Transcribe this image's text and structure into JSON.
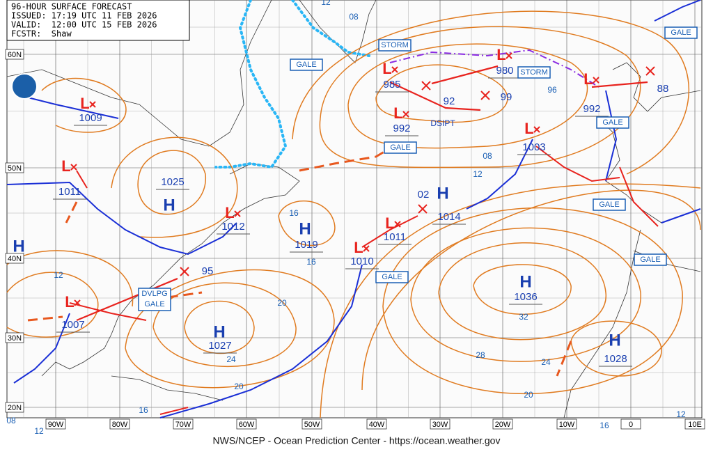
{
  "header": {
    "title": "96-HOUR SURFACE FORECAST",
    "issued": "ISSUED: 17:19 UTC 11 FEB 2026",
    "valid": "VALID:  12:00 UTC 15 FEB 2026",
    "forecaster": "FCSTR:  Shaw"
  },
  "latitude_labels": [
    "60N",
    "50N",
    "40N",
    "30N",
    "20N"
  ],
  "longitude_labels": [
    "90W",
    "80W",
    "70W",
    "60W",
    "50W",
    "40W",
    "30W",
    "20W",
    "10W",
    "0",
    "10E"
  ],
  "highs": [
    {
      "symbol": "H",
      "pressure": "1025"
    },
    {
      "symbol": "H",
      "pressure": "1019"
    },
    {
      "symbol": "H",
      "pressure": "1027"
    },
    {
      "symbol": "H",
      "pressure": "1014"
    },
    {
      "symbol": "H",
      "pressure": "1036"
    },
    {
      "symbol": "H",
      "pressure": "1028"
    },
    {
      "symbol": "H"
    }
  ],
  "lows": [
    {
      "symbol": "L",
      "pressure": "1009"
    },
    {
      "symbol": "L",
      "pressure": "1011"
    },
    {
      "symbol": "L",
      "pressure": "1012"
    },
    {
      "symbol": "L",
      "pressure": "1010"
    },
    {
      "symbol": "L",
      "pressure": "1011"
    },
    {
      "symbol": "L",
      "pressure": "1007"
    },
    {
      "symbol": "L",
      "pressure": "985"
    },
    {
      "symbol": "L",
      "pressure": "992"
    },
    {
      "symbol": "L",
      "pressure": "980"
    },
    {
      "symbol": "L",
      "pressure": "1003"
    },
    {
      "symbol": "L",
      "pressure": "992"
    }
  ],
  "forecast_positions": [
    "92",
    "99",
    "88",
    "95",
    "02"
  ],
  "isobar_labels": [
    "12",
    "08",
    "16",
    "16",
    "20",
    "24",
    "20",
    "16",
    "12",
    "08",
    "12",
    "96",
    "08",
    "12",
    "32",
    "28",
    "24",
    "20",
    "16",
    "12"
  ],
  "warnings": [
    [
      "GALE"
    ],
    [
      "STORM"
    ],
    [
      "STORM"
    ],
    [
      "GALE"
    ],
    [
      "GALE"
    ],
    [
      "GALE"
    ],
    [
      "GALE"
    ],
    [
      "GALE"
    ],
    [
      "GALE"
    ],
    [
      "DVLPG",
      "GALE"
    ]
  ],
  "notes": [
    "DSIPT"
  ],
  "footer": "NWS/NCEP - Ocean Prediction Center - https://ocean.weather.gov"
}
